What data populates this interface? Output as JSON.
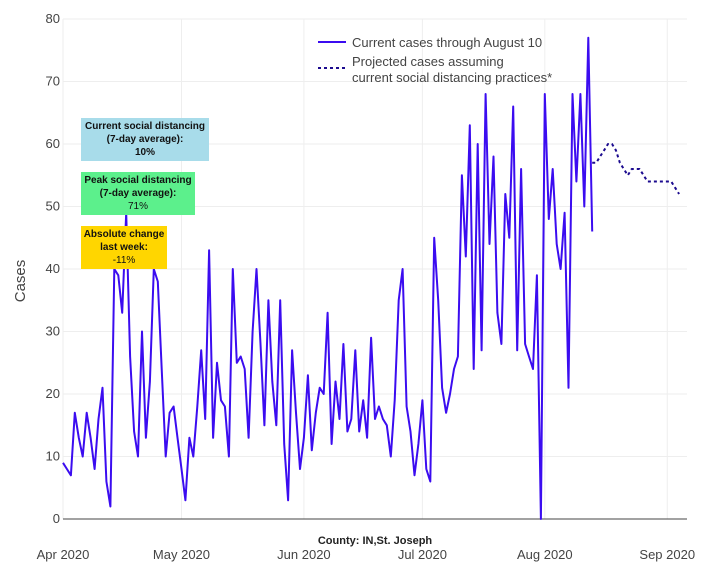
{
  "chart_data": {
    "type": "line",
    "ylabel": "Cases",
    "xlabel": "",
    "caption": "County: IN,St. Joseph",
    "ylim": [
      0,
      80
    ],
    "yticks": [
      0,
      10,
      20,
      30,
      40,
      50,
      60,
      70,
      80
    ],
    "xticks": [
      {
        "day": 0,
        "label": "Apr 2020"
      },
      {
        "day": 30,
        "label": "May 2020"
      },
      {
        "day": 61,
        "label": "Jun 2020"
      },
      {
        "day": 91,
        "label": "Jul 2020"
      },
      {
        "day": 122,
        "label": "Aug 2020"
      },
      {
        "day": 153,
        "label": "Sep 2020"
      }
    ],
    "xlim_days": [
      0,
      158
    ],
    "grid": true,
    "legend_position": "top-right",
    "series": [
      {
        "name": "Current cases through August 10",
        "style": "solid",
        "color": "#3b0cf0",
        "start_day": 0,
        "values": [
          9,
          8,
          7,
          17,
          13,
          10,
          17,
          13,
          8,
          16,
          21,
          6,
          2,
          40,
          39,
          33,
          49,
          26,
          14,
          10,
          30,
          13,
          22,
          40,
          38,
          24,
          10,
          17,
          18,
          13,
          8,
          3,
          13,
          10,
          18,
          27,
          16,
          43,
          13,
          25,
          19,
          18,
          10,
          40,
          25,
          26,
          24,
          13,
          30,
          40,
          28,
          15,
          35,
          22,
          15,
          35,
          12,
          3,
          27,
          17,
          8,
          13,
          23,
          11,
          17,
          21,
          20,
          33,
          12,
          22,
          16,
          28,
          14,
          16,
          27,
          14,
          19,
          13,
          29,
          16,
          18,
          16,
          15,
          10,
          19,
          35,
          40,
          18,
          14,
          7,
          12,
          19,
          8,
          6,
          45,
          35,
          21,
          17,
          20,
          24,
          26,
          55,
          42,
          63,
          24,
          60,
          27,
          68,
          44,
          58,
          33,
          28,
          52,
          45,
          66,
          27,
          56,
          28,
          26,
          24,
          39,
          0,
          68,
          48,
          56,
          44,
          40,
          49,
          21,
          68,
          54,
          68,
          50,
          77,
          46
        ]
      },
      {
        "name": "Projected cases assuming current social distancing practices*",
        "style": "dotted",
        "color": "#1c0b8f",
        "start_day": 134,
        "values": [
          57,
          57,
          58,
          59,
          60,
          60,
          59,
          57,
          56,
          55,
          56,
          56,
          56,
          55,
          54,
          54,
          54,
          54,
          54,
          54,
          54,
          53,
          52
        ]
      }
    ],
    "legend": [
      {
        "line1": "Current cases through August 10",
        "line2": ""
      },
      {
        "line1": "Projected cases assuming",
        "line2": "current social distancing practices*"
      }
    ]
  },
  "annotations": [
    {
      "title": "Current social distancing",
      "subtitle": "(7-day average):",
      "value": "10%",
      "color": "#a8dcea"
    },
    {
      "title": "Peak social distancing",
      "subtitle": "(7-day average):",
      "value": "71%",
      "color": "#5cf08c"
    },
    {
      "title": "Absolute change",
      "subtitle": "last week:",
      "value": "-11%",
      "color": "#ffd600"
    }
  ]
}
